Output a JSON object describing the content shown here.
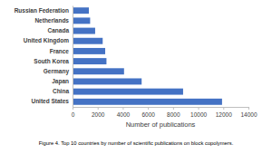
{
  "chart_data": {
    "type": "bar",
    "orientation": "horizontal",
    "title": "Figure 4. Top 10 countries by number of scientific publications on block copolymers.",
    "x_label": "Number of publications",
    "categories": [
      "Russian Federation",
      "Netherlands",
      "Canada",
      "United Kingdom",
      "France",
      "South Korea",
      "Germany",
      "Japan",
      "China",
      "United States"
    ],
    "values": [
      1300,
      1400,
      1800,
      2400,
      2600,
      2700,
      4100,
      5500,
      8800,
      11900
    ],
    "color": "#4472c4",
    "xlim": [
      0,
      14000
    ],
    "xticks": [
      0,
      2000,
      4000,
      6000,
      8000,
      10000,
      12000,
      14000
    ],
    "grid": false
  }
}
